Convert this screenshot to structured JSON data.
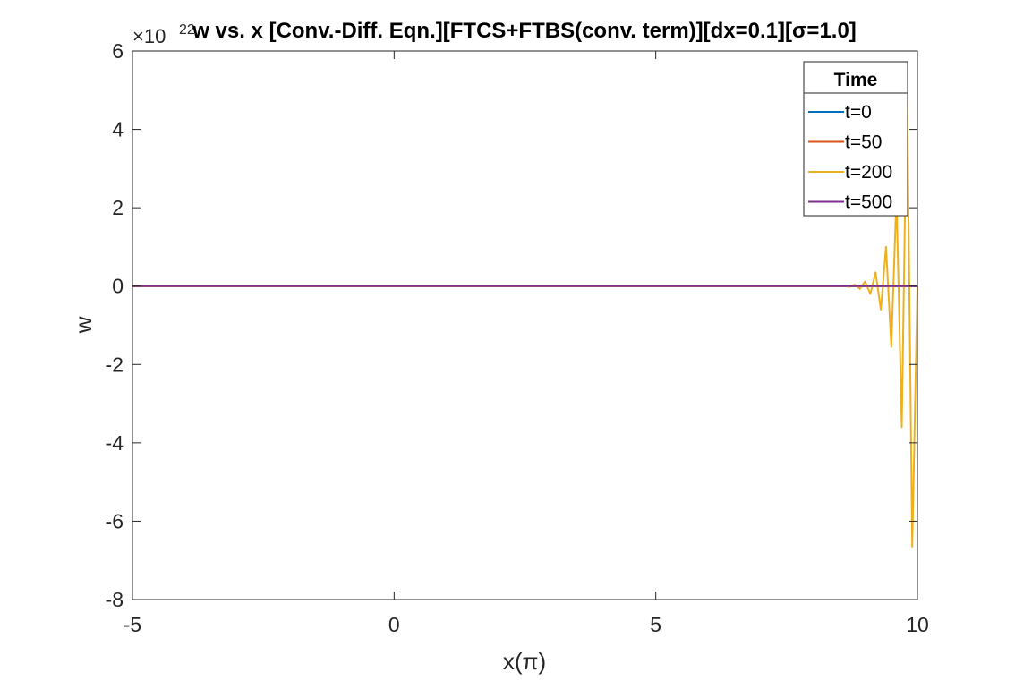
{
  "chart_data": {
    "type": "line",
    "title": "w vs. x [Conv.-Diff. Eqn.][FTCS+FTBS(conv. term)][dx=0.1][σ=1.0]",
    "xlabel": "x(π)",
    "ylabel": "w",
    "y_exponent_label": "×10",
    "y_exponent_power": "22",
    "xlim": [
      -5,
      10
    ],
    "ylim": [
      -8,
      6
    ],
    "x_ticks": [
      -5,
      0,
      5,
      10
    ],
    "y_ticks": [
      -8,
      -6,
      -4,
      -2,
      0,
      2,
      4,
      6
    ],
    "x_tick_labels": [
      "-5",
      "0",
      "5",
      "10"
    ],
    "y_tick_labels": [
      "-8",
      "-6",
      "-4",
      "-2",
      "0",
      "2",
      "4",
      "6"
    ],
    "grid": false,
    "legend": {
      "title": "Time",
      "placement": "top-right"
    },
    "series": [
      {
        "name": "t=0",
        "color": "#0072BD",
        "x": [
          -5,
          10
        ],
        "y": [
          0,
          0
        ]
      },
      {
        "name": "t=50",
        "color": "#D95319",
        "x": [
          -5,
          10
        ],
        "y": [
          0,
          0
        ]
      },
      {
        "name": "t=200",
        "color": "#EDB120",
        "x": [
          -5,
          8.5,
          8.6,
          8.7,
          8.8,
          8.9,
          9.0,
          9.1,
          9.2,
          9.3,
          9.4,
          9.5,
          9.6,
          9.7,
          9.8,
          9.9,
          10.0
        ],
        "y": [
          0,
          0,
          0.01,
          -0.02,
          0.04,
          -0.07,
          0.12,
          -0.2,
          0.35,
          -0.6,
          1.0,
          -1.55,
          2.3,
          -3.6,
          5.3,
          -6.65,
          0
        ]
      },
      {
        "name": "t=500",
        "color": "#7E2F8E",
        "x": [
          -5,
          10
        ],
        "y": [
          0,
          0
        ]
      }
    ]
  }
}
